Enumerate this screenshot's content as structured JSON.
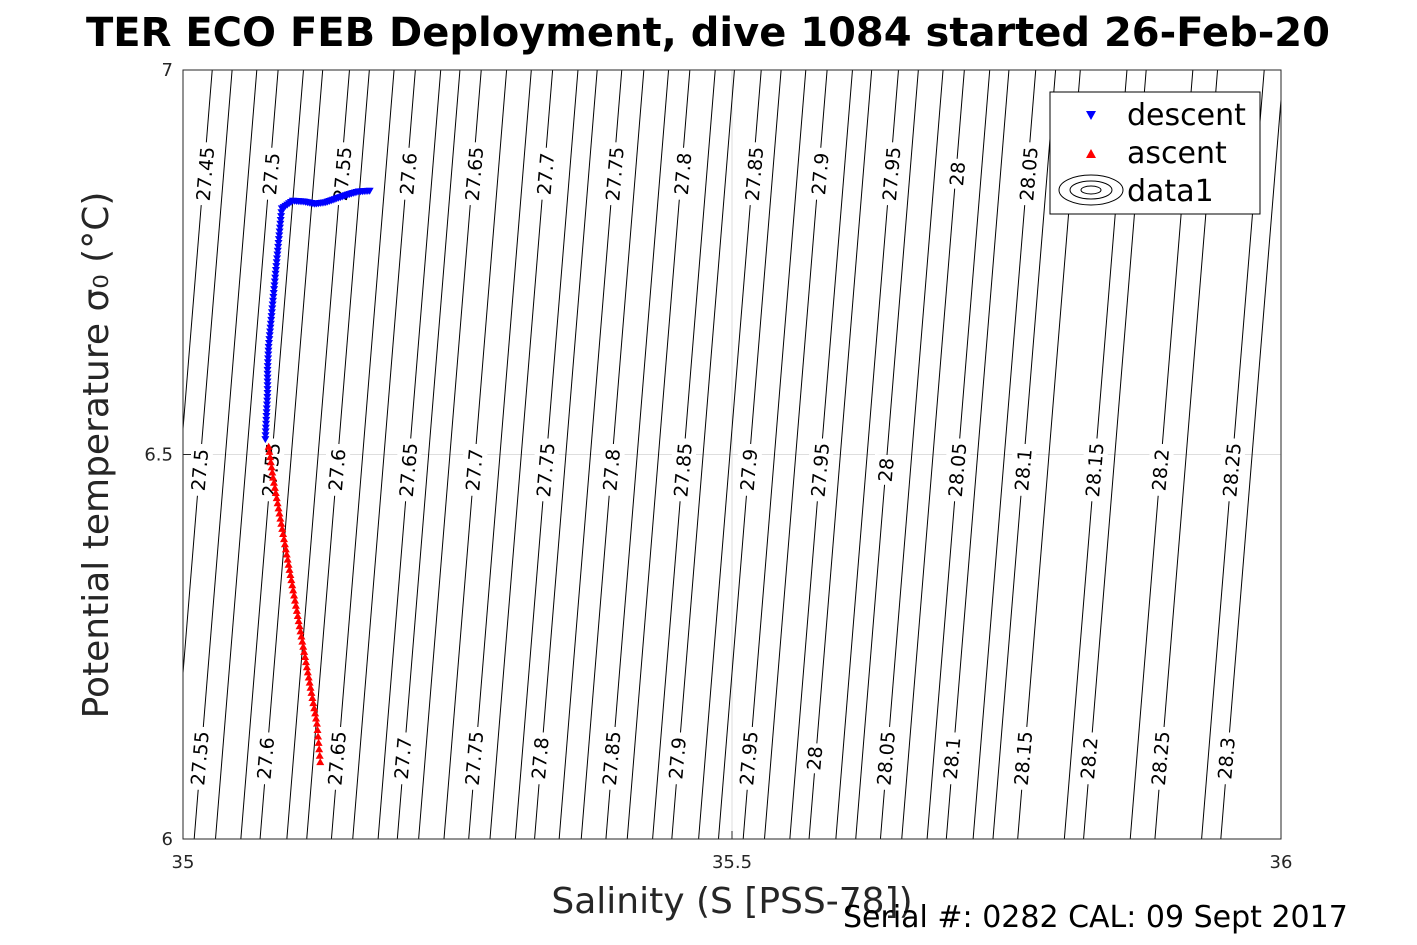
{
  "chart_data": {
    "type": "scatter",
    "title": "TER ECO FEB Deployment, dive 1084 started 26-Feb-20",
    "xlabel": "Salinity (S [PSS-78])",
    "ylabel": "Potential temperature σ₀ (°C)",
    "xlim": [
      35,
      36
    ],
    "ylim": [
      6,
      7
    ],
    "xticks": [
      "35",
      "35.5",
      "36"
    ],
    "yticks": [
      "6",
      "6.5",
      "7"
    ],
    "grid": true,
    "legend_position": "top-right",
    "series": [
      {
        "name": "descent",
        "marker": "triangle-down",
        "color": "#0000ff",
        "points": [
          [
            35.075,
            6.52
          ],
          [
            35.076,
            6.55
          ],
          [
            35.077,
            6.58
          ],
          [
            35.077,
            6.61
          ],
          [
            35.078,
            6.64
          ],
          [
            35.08,
            6.67
          ],
          [
            35.082,
            6.7
          ],
          [
            35.084,
            6.73
          ],
          [
            35.086,
            6.76
          ],
          [
            35.088,
            6.79
          ],
          [
            35.09,
            6.82
          ],
          [
            35.1,
            6.83
          ],
          [
            35.11,
            6.829
          ],
          [
            35.12,
            6.826
          ],
          [
            35.13,
            6.828
          ],
          [
            35.14,
            6.833
          ],
          [
            35.15,
            6.838
          ],
          [
            35.16,
            6.842
          ],
          [
            35.17,
            6.843
          ]
        ]
      },
      {
        "name": "ascent",
        "marker": "triangle-up",
        "color": "#ff0000",
        "points": [
          [
            35.078,
            6.51
          ],
          [
            35.082,
            6.47
          ],
          [
            35.087,
            6.43
          ],
          [
            35.092,
            6.39
          ],
          [
            35.097,
            6.35
          ],
          [
            35.102,
            6.31
          ],
          [
            35.107,
            6.27
          ],
          [
            35.112,
            6.23
          ],
          [
            35.117,
            6.19
          ],
          [
            35.122,
            6.15
          ],
          [
            35.125,
            6.1
          ]
        ]
      },
      {
        "name": "data1",
        "marker": "contour"
      }
    ],
    "contour_lines": [
      {
        "value": "27.45",
        "label_x": 35.02,
        "label_y": 6.865
      },
      {
        "value": "27.5",
        "label_x": 35.08,
        "label_y": 6.865
      },
      {
        "value": "27.55",
        "label_x": 35.145,
        "label_y": 6.865
      },
      {
        "value": "27.6",
        "label_x": 35.205,
        "label_y": 6.865
      },
      {
        "value": "27.65",
        "label_x": 35.265,
        "label_y": 6.865
      },
      {
        "value": "27.7",
        "label_x": 35.33,
        "label_y": 6.865
      },
      {
        "value": "27.75",
        "label_x": 35.393,
        "label_y": 6.865
      },
      {
        "value": "27.8",
        "label_x": 35.455,
        "label_y": 6.865
      },
      {
        "value": "27.85",
        "label_x": 35.52,
        "label_y": 6.865
      },
      {
        "value": "27.9",
        "label_x": 35.58,
        "label_y": 6.865
      },
      {
        "value": "27.95",
        "label_x": 35.645,
        "label_y": 6.865
      },
      {
        "value": "28",
        "label_x": 35.705,
        "label_y": 6.865
      },
      {
        "value": "28.05",
        "label_x": 35.77,
        "label_y": 6.865
      },
      {
        "value": "27.5",
        "label_x": 35.015,
        "label_y": 6.48
      },
      {
        "value": "27.55",
        "label_x": 35.08,
        "label_y": 6.48
      },
      {
        "value": "27.6",
        "label_x": 35.14,
        "label_y": 6.48
      },
      {
        "value": "27.65",
        "label_x": 35.205,
        "label_y": 6.48
      },
      {
        "value": "27.7",
        "label_x": 35.265,
        "label_y": 6.48
      },
      {
        "value": "27.75",
        "label_x": 35.33,
        "label_y": 6.48
      },
      {
        "value": "27.8",
        "label_x": 35.39,
        "label_y": 6.48
      },
      {
        "value": "27.85",
        "label_x": 35.455,
        "label_y": 6.48
      },
      {
        "value": "27.9",
        "label_x": 35.515,
        "label_y": 6.48
      },
      {
        "value": "27.95",
        "label_x": 35.58,
        "label_y": 6.48
      },
      {
        "value": "28",
        "label_x": 35.64,
        "label_y": 6.48
      },
      {
        "value": "28.05",
        "label_x": 35.705,
        "label_y": 6.48
      },
      {
        "value": "28.1",
        "label_x": 35.765,
        "label_y": 6.48
      },
      {
        "value": "28.15",
        "label_x": 35.83,
        "label_y": 6.48
      },
      {
        "value": "28.2",
        "label_x": 35.89,
        "label_y": 6.48
      },
      {
        "value": "28.25",
        "label_x": 35.955,
        "label_y": 6.48
      },
      {
        "value": "27.55",
        "label_x": 35.015,
        "label_y": 6.105
      },
      {
        "value": "27.6",
        "label_x": 35.075,
        "label_y": 6.105
      },
      {
        "value": "27.65",
        "label_x": 35.14,
        "label_y": 6.105
      },
      {
        "value": "27.7",
        "label_x": 35.2,
        "label_y": 6.105
      },
      {
        "value": "27.75",
        "label_x": 35.265,
        "label_y": 6.105
      },
      {
        "value": "27.8",
        "label_x": 35.325,
        "label_y": 6.105
      },
      {
        "value": "27.85",
        "label_x": 35.39,
        "label_y": 6.105
      },
      {
        "value": "27.9",
        "label_x": 35.45,
        "label_y": 6.105
      },
      {
        "value": "27.95",
        "label_x": 35.515,
        "label_y": 6.105
      },
      {
        "value": "28",
        "label_x": 35.575,
        "label_y": 6.105
      },
      {
        "value": "28.05",
        "label_x": 35.64,
        "label_y": 6.105
      },
      {
        "value": "28.1",
        "label_x": 35.7,
        "label_y": 6.105
      },
      {
        "value": "28.15",
        "label_x": 35.765,
        "label_y": 6.105
      },
      {
        "value": "28.2",
        "label_x": 35.825,
        "label_y": 6.105
      },
      {
        "value": "28.25",
        "label_x": 35.89,
        "label_y": 6.105
      },
      {
        "value": "28.3",
        "label_x": 35.95,
        "label_y": 6.105
      }
    ],
    "footer": "Serial #: 0282  CAL: 09 Sept 2017"
  }
}
